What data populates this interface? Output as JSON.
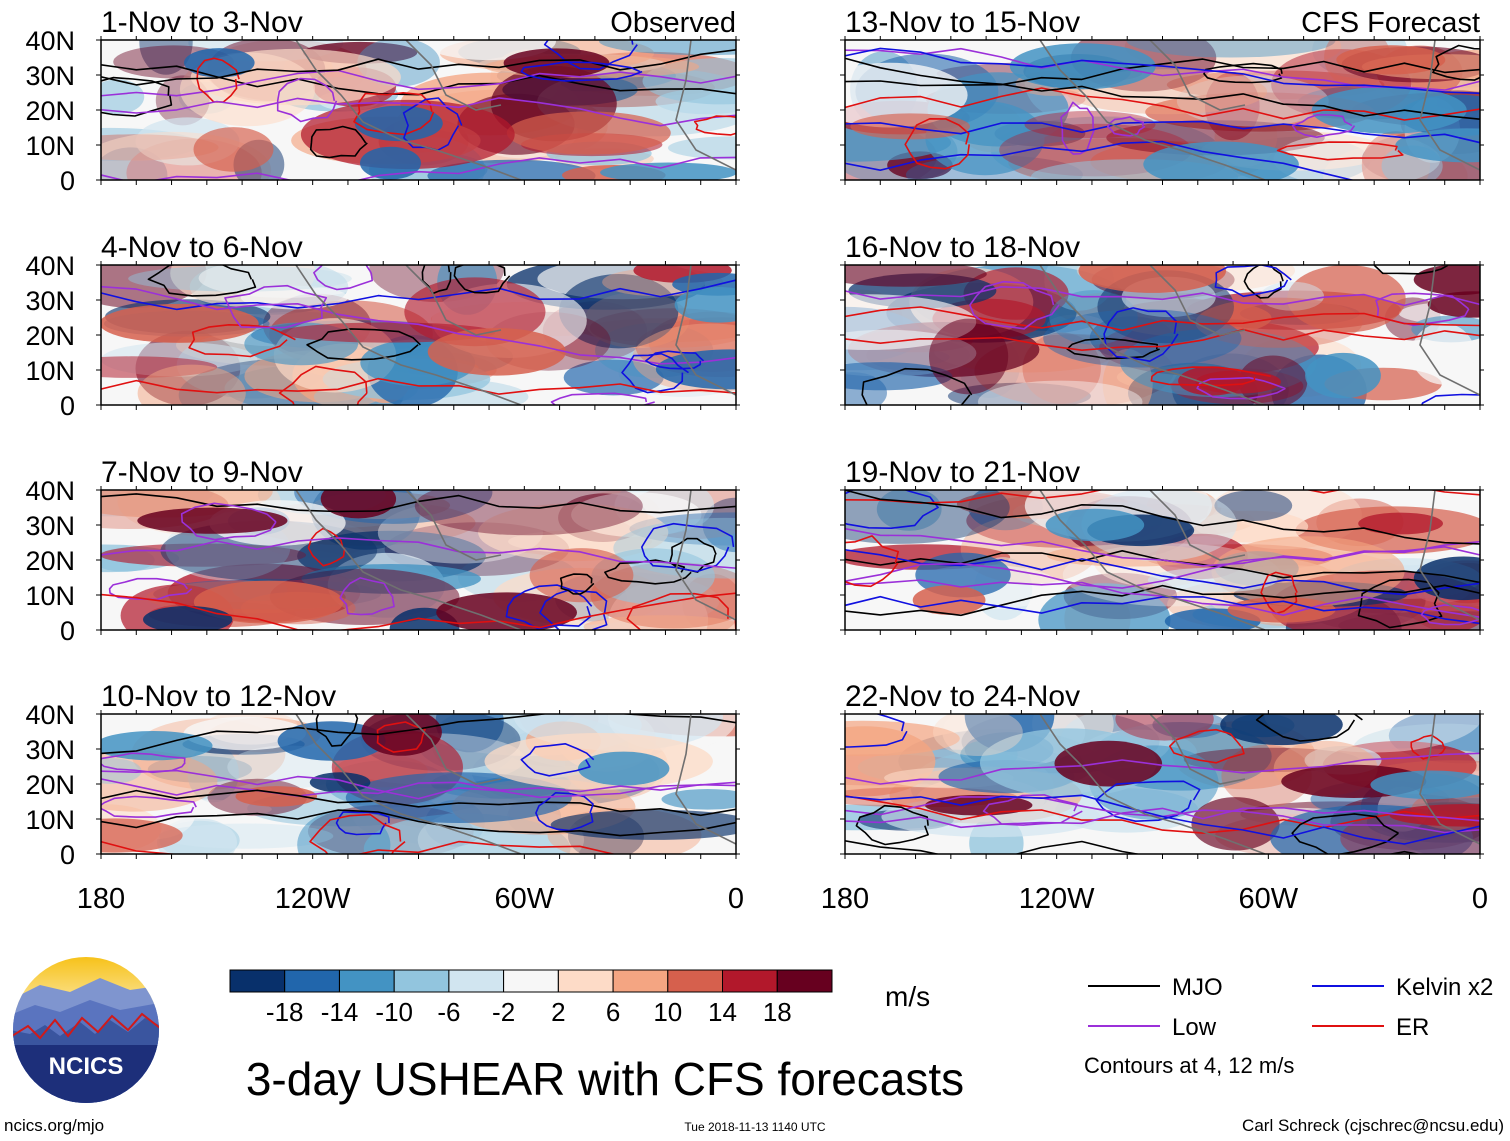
{
  "chart_data": {
    "type": "heatmap",
    "title": "3-day USHEAR with CFS forecasts",
    "variable": "USHEAR",
    "units": "m/s",
    "x_axis": {
      "label": "",
      "ticks": [
        "180",
        "120W",
        "60W",
        "0"
      ],
      "range": [
        -180,
        0
      ]
    },
    "y_axis": {
      "label": "",
      "ticks": [
        "40N",
        "30N",
        "20N",
        "10N",
        "0"
      ],
      "range": [
        0,
        40
      ]
    },
    "colorbar": {
      "levels": [
        "-18",
        "-14",
        "-10",
        "-6",
        "-2",
        "2",
        "6",
        "10",
        "14",
        "18"
      ],
      "colors": [
        "#08306b",
        "#2166ac",
        "#4393c3",
        "#92c5de",
        "#d1e5f0",
        "#f7f7f7",
        "#fddbc7",
        "#f4a582",
        "#d6604d",
        "#b2182b",
        "#67001f"
      ]
    },
    "contours": {
      "note": "Contours at 4, 12 m/s",
      "series": [
        {
          "name": "MJO",
          "color": "#000000"
        },
        {
          "name": "Low",
          "color": "#9b30d9"
        },
        {
          "name": "Kelvin x2",
          "color": "#1010e0"
        },
        {
          "name": "ER",
          "color": "#e01010"
        }
      ]
    },
    "panels": [
      {
        "label": "1-Nov to 3-Nov",
        "tag": "Observed",
        "column": "left",
        "row": 0
      },
      {
        "label": "4-Nov to 6-Nov",
        "tag": "",
        "column": "left",
        "row": 1
      },
      {
        "label": "7-Nov to 9-Nov",
        "tag": "",
        "column": "left",
        "row": 2
      },
      {
        "label": "10-Nov to 12-Nov",
        "tag": "",
        "column": "left",
        "row": 3
      },
      {
        "label": "13-Nov to 15-Nov",
        "tag": "CFS Forecast",
        "column": "right",
        "row": 0
      },
      {
        "label": "16-Nov to 18-Nov",
        "tag": "",
        "column": "right",
        "row": 1
      },
      {
        "label": "19-Nov to 21-Nov",
        "tag": "",
        "column": "right",
        "row": 2
      },
      {
        "label": "22-Nov to 24-Nov",
        "tag": "",
        "column": "right",
        "row": 3
      }
    ]
  },
  "logo": {
    "text": "NCICS"
  },
  "footer": {
    "website": "ncics.org/mjo",
    "timestamp": "Tue 2018-11-13 1140 UTC",
    "author": "Carl Schreck (cjschrec@ncsu.edu)"
  }
}
